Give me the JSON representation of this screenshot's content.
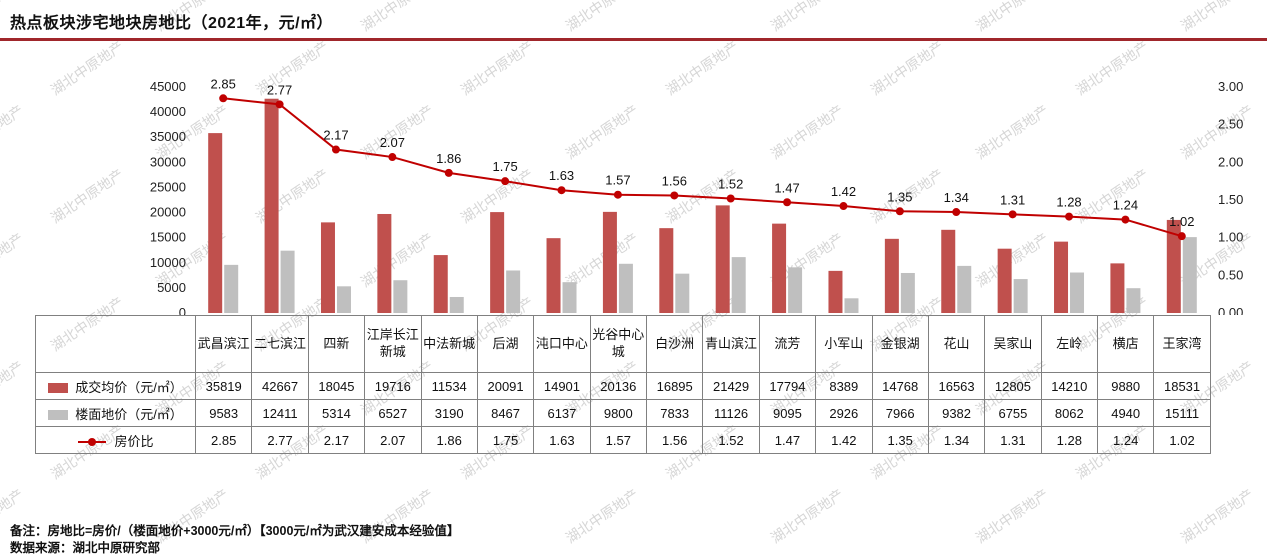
{
  "page": {
    "title": "热点板块涉宅地块房地比（2021年，元/㎡）",
    "watermark": "湖北中原地产",
    "note": "备注：房地比=房价/（楼面地价+3000元/㎡）【3000元/㎡为武汉建安成本经验值】",
    "source": "数据来源：湖北中原研究部"
  },
  "colors": {
    "accent_red": "#A0262B",
    "bar_red": "#C0504D",
    "bar_gray": "#BFBFBF",
    "line_red": "#C00000",
    "table_border": "#808080"
  },
  "chart_data": {
    "type": "bar+line",
    "title": "热点板块涉宅地块房地比（2021年，元/㎡）",
    "categories": [
      "武昌滨江",
      "二七滨江",
      "四新",
      "江岸长江新城",
      "中法新城",
      "后湖",
      "沌口中心",
      "光谷中心城",
      "白沙洲",
      "青山滨江",
      "流芳",
      "小军山",
      "金银湖",
      "花山",
      "吴家山",
      "左岭",
      "横店",
      "王家湾"
    ],
    "series": [
      {
        "name": "成交均价（元/㎡）",
        "type": "bar",
        "color": "#C0504D",
        "values": [
          35819,
          42667,
          18045,
          19716,
          11534,
          20091,
          14901,
          20136,
          16895,
          21429,
          17794,
          8389,
          14768,
          16563,
          12805,
          14210,
          9880,
          18531
        ]
      },
      {
        "name": "楼面地价（元/㎡）",
        "type": "bar",
        "color": "#BFBFBF",
        "values": [
          9583,
          12411,
          5314,
          6527,
          3190,
          8467,
          6137,
          9800,
          7833,
          11126,
          9095,
          2926,
          7966,
          9382,
          6755,
          8062,
          4940,
          15111
        ]
      },
      {
        "name": "房价比",
        "type": "line",
        "color": "#C00000",
        "values": [
          2.85,
          2.77,
          2.17,
          2.07,
          1.86,
          1.75,
          1.63,
          1.57,
          1.56,
          1.52,
          1.47,
          1.42,
          1.35,
          1.34,
          1.31,
          1.28,
          1.24,
          1.02
        ]
      }
    ],
    "y_left": {
      "min": 0,
      "max": 45000,
      "step": 5000
    },
    "y_right": {
      "min": 0,
      "max": 3.0,
      "step": 0.5
    },
    "grid": false,
    "legend_position": "table-left"
  }
}
